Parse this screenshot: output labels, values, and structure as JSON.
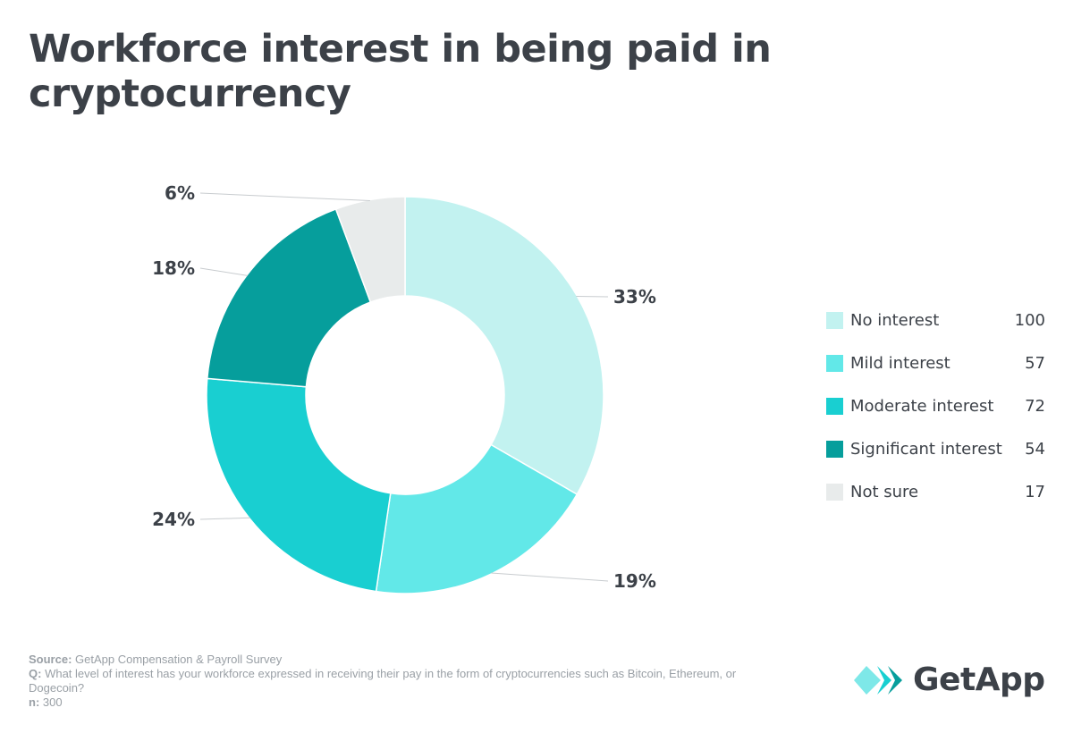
{
  "title": "Workforce interest in being paid in cryptocurrency",
  "chart_data": {
    "type": "pie",
    "variant": "donut",
    "categories": [
      "No interest",
      "Mild interest",
      "Moderate interest",
      "Significant interest",
      "Not sure"
    ],
    "values": [
      100,
      57,
      72,
      54,
      17
    ],
    "percent_labels": [
      "33%",
      "19%",
      "24%",
      "18%",
      "6%"
    ],
    "colors": [
      "#c2f2f0",
      "#62e8e8",
      "#19cfd1",
      "#069e9c",
      "#e8ebeb"
    ],
    "legend_position": "right"
  },
  "legend": [
    {
      "label": "No interest",
      "value": "100",
      "color": "#c2f2f0"
    },
    {
      "label": "Mild interest",
      "value": "57",
      "color": "#62e8e8"
    },
    {
      "label": "Moderate interest",
      "value": "72",
      "color": "#19cfd1"
    },
    {
      "label": "Significant interest",
      "value": "54",
      "color": "#069e9c"
    },
    {
      "label": "Not sure",
      "value": "17",
      "color": "#e8ebeb"
    }
  ],
  "footer": {
    "source_label": "Source:",
    "source_text": " GetApp Compensation & Payroll Survey",
    "q_label": "Q:",
    "q_text": " What level of interest has your workforce expressed in receiving their pay in the form of cryptocurrencies such as Bitcoin, Ethereum, or Dogecoin?",
    "n_label": "n:",
    "n_text": " 300"
  },
  "logo": {
    "text": "GetApp",
    "icon": "getapp-chevrons-icon",
    "icon_colors": [
      "#7ee8e8",
      "#19cfd1",
      "#069e9c"
    ]
  }
}
